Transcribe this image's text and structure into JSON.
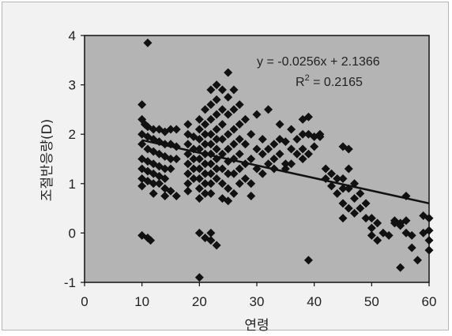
{
  "chart_data": {
    "type": "scatter",
    "title": "",
    "xlabel": "연령",
    "ylabel": "조절반응량(D)",
    "xlim": [
      0,
      60
    ],
    "ylim": [
      -1,
      4
    ],
    "x_ticks": [
      "0",
      "10",
      "20",
      "30",
      "40",
      "50",
      "60"
    ],
    "y_ticks": [
      "-1",
      "0",
      "1",
      "2",
      "3",
      "4"
    ],
    "grid": false,
    "background_color": "#b4b4b4",
    "marker_color": "#111111",
    "marker": "diamond",
    "trendline": {
      "slope": -0.0256,
      "intercept": 2.1366,
      "x_range": [
        10,
        60
      ]
    },
    "annotations": {
      "equation": "y = -0.0256x + 2.1366",
      "r2_label": "R",
      "r2_sup": "2",
      "r2_value": " = 0.2165"
    },
    "points": [
      [
        11,
        3.85
      ],
      [
        10,
        2.6
      ],
      [
        10,
        2.3
      ],
      [
        10.5,
        2.2
      ],
      [
        11,
        2.15
      ],
      [
        12,
        2.1
      ],
      [
        13,
        2.1
      ],
      [
        14,
        2.05
      ],
      [
        15,
        2.1
      ],
      [
        16,
        2.1
      ],
      [
        10,
        2.0
      ],
      [
        11,
        1.95
      ],
      [
        12,
        1.9
      ],
      [
        13,
        1.85
      ],
      [
        14,
        1.8
      ],
      [
        15,
        1.8
      ],
      [
        16,
        1.75
      ],
      [
        10,
        1.8
      ],
      [
        11,
        1.7
      ],
      [
        12,
        1.65
      ],
      [
        13,
        1.6
      ],
      [
        14,
        1.55
      ],
      [
        15,
        1.5
      ],
      [
        16,
        1.5
      ],
      [
        10,
        1.5
      ],
      [
        11,
        1.45
      ],
      [
        12,
        1.4
      ],
      [
        13,
        1.35
      ],
      [
        14,
        1.3
      ],
      [
        15,
        1.3
      ],
      [
        10,
        1.3
      ],
      [
        11,
        1.25
      ],
      [
        12,
        1.2
      ],
      [
        13,
        1.15
      ],
      [
        14,
        1.1
      ],
      [
        10,
        1.1
      ],
      [
        11,
        1.05
      ],
      [
        12,
        1.0
      ],
      [
        13,
        1.0
      ],
      [
        10,
        0.95
      ],
      [
        14,
        0.9
      ],
      [
        15,
        0.85
      ],
      [
        12,
        0.8
      ],
      [
        14,
        0.75
      ],
      [
        16,
        0.75
      ],
      [
        10,
        -0.05
      ],
      [
        11,
        -0.1
      ],
      [
        11.5,
        -0.15
      ],
      [
        18,
        2.2
      ],
      [
        18,
        2.0
      ],
      [
        18,
        1.8
      ],
      [
        18,
        1.6
      ],
      [
        18,
        1.4
      ],
      [
        18,
        1.2
      ],
      [
        18,
        1.0
      ],
      [
        18,
        0.85
      ],
      [
        19,
        1.95
      ],
      [
        19,
        1.7
      ],
      [
        19,
        1.5
      ],
      [
        19,
        1.3
      ],
      [
        19,
        1.1
      ],
      [
        20,
        2.3
      ],
      [
        20,
        2.1
      ],
      [
        20,
        1.9
      ],
      [
        20,
        1.7
      ],
      [
        20,
        1.5
      ],
      [
        20,
        1.3
      ],
      [
        20,
        1.1
      ],
      [
        20,
        0.9
      ],
      [
        20,
        0.7
      ],
      [
        20,
        0.0
      ],
      [
        20,
        -0.9
      ],
      [
        21,
        2.5
      ],
      [
        21,
        2.2
      ],
      [
        21,
        2.0
      ],
      [
        21,
        1.8
      ],
      [
        21,
        1.6
      ],
      [
        21,
        1.4
      ],
      [
        21,
        1.2
      ],
      [
        21,
        1.0
      ],
      [
        21,
        0.8
      ],
      [
        21,
        -0.1
      ],
      [
        22,
        2.9
      ],
      [
        22,
        2.6
      ],
      [
        22,
        2.3
      ],
      [
        22,
        2.0
      ],
      [
        22,
        1.8
      ],
      [
        22,
        1.6
      ],
      [
        22,
        1.4
      ],
      [
        22,
        1.2
      ],
      [
        22,
        1.0
      ],
      [
        22,
        0.8
      ],
      [
        22,
        0.0
      ],
      [
        22,
        -0.15
      ],
      [
        23,
        3.0
      ],
      [
        23,
        2.7
      ],
      [
        23,
        2.4
      ],
      [
        23,
        2.1
      ],
      [
        23,
        1.9
      ],
      [
        23,
        1.7
      ],
      [
        23,
        1.5
      ],
      [
        23,
        1.3
      ],
      [
        23,
        1.1
      ],
      [
        23,
        -0.25
      ],
      [
        24,
        2.9
      ],
      [
        24,
        2.5
      ],
      [
        24,
        2.2
      ],
      [
        24,
        1.9
      ],
      [
        24,
        1.6
      ],
      [
        24,
        1.3
      ],
      [
        24,
        1.0
      ],
      [
        24,
        0.7
      ],
      [
        25,
        3.25
      ],
      [
        25,
        2.75
      ],
      [
        25,
        2.4
      ],
      [
        25,
        2.0
      ],
      [
        25,
        1.7
      ],
      [
        25,
        1.45
      ],
      [
        25,
        1.2
      ],
      [
        25,
        0.9
      ],
      [
        25,
        0.65
      ],
      [
        26,
        2.9
      ],
      [
        26,
        2.5
      ],
      [
        26,
        2.1
      ],
      [
        26,
        1.8
      ],
      [
        26,
        1.5
      ],
      [
        26,
        1.2
      ],
      [
        26,
        0.8
      ],
      [
        27,
        2.6
      ],
      [
        27,
        2.2
      ],
      [
        27,
        1.9
      ],
      [
        27,
        1.6
      ],
      [
        27,
        1.3
      ],
      [
        27,
        1.0
      ],
      [
        28,
        2.3
      ],
      [
        28,
        1.8
      ],
      [
        28,
        1.4
      ],
      [
        28,
        1.1
      ],
      [
        29,
        2.0
      ],
      [
        29,
        1.5
      ],
      [
        29,
        1.0
      ],
      [
        29,
        0.75
      ],
      [
        30,
        2.4
      ],
      [
        30,
        1.7
      ],
      [
        30,
        1.3
      ],
      [
        31,
        1.9
      ],
      [
        31,
        1.6
      ],
      [
        31,
        1.2
      ],
      [
        32,
        2.5
      ],
      [
        32,
        1.7
      ],
      [
        32,
        1.4
      ],
      [
        33,
        1.8
      ],
      [
        33,
        1.5
      ],
      [
        33,
        1.3
      ],
      [
        34,
        2.2
      ],
      [
        34,
        1.9
      ],
      [
        34,
        1.6
      ],
      [
        35,
        1.85
      ],
      [
        35,
        1.4
      ],
      [
        35,
        1.3
      ],
      [
        36,
        2.1
      ],
      [
        36,
        1.7
      ],
      [
        36,
        1.4
      ],
      [
        37,
        1.9
      ],
      [
        37,
        1.6
      ],
      [
        38,
        2.3
      ],
      [
        38,
        2.0
      ],
      [
        38,
        1.7
      ],
      [
        38,
        1.5
      ],
      [
        39,
        2.35
      ],
      [
        39,
        2.0
      ],
      [
        39,
        1.6
      ],
      [
        39,
        -0.55
      ],
      [
        40,
        1.95
      ],
      [
        40,
        1.75
      ],
      [
        41,
        2.0
      ],
      [
        41,
        1.95
      ],
      [
        42,
        1.3
      ],
      [
        42,
        1.1
      ],
      [
        43,
        1.2
      ],
      [
        43,
        0.95
      ],
      [
        44,
        1.1
      ],
      [
        44,
        0.8
      ],
      [
        45,
        1.75
      ],
      [
        45,
        1.1
      ],
      [
        45,
        0.9
      ],
      [
        45,
        0.6
      ],
      [
        45,
        0.3
      ],
      [
        46,
        1.7
      ],
      [
        46,
        1.3
      ],
      [
        46,
        0.9
      ],
      [
        46,
        0.5
      ],
      [
        47,
        1.0
      ],
      [
        47,
        0.7
      ],
      [
        47,
        0.4
      ],
      [
        48,
        0.8
      ],
      [
        48,
        0.5
      ],
      [
        49,
        0.6
      ],
      [
        49,
        0.3
      ],
      [
        50,
        0.3
      ],
      [
        50,
        0.1
      ],
      [
        50,
        -0.05
      ],
      [
        51,
        0.2
      ],
      [
        51,
        -0.15
      ],
      [
        52,
        0.0
      ],
      [
        53,
        -0.05
      ],
      [
        54,
        0.25
      ],
      [
        54,
        0.2
      ],
      [
        55,
        0.2
      ],
      [
        55,
        0.15
      ],
      [
        55,
        -0.7
      ],
      [
        56,
        0.25
      ],
      [
        56,
        0.75
      ],
      [
        56,
        0.0
      ],
      [
        57,
        -0.05
      ],
      [
        57,
        -0.3
      ],
      [
        58,
        -0.55
      ],
      [
        59,
        0.35
      ],
      [
        59,
        0.0
      ],
      [
        60,
        0.3
      ],
      [
        60,
        0.05
      ],
      [
        60,
        -0.15
      ],
      [
        60,
        -0.35
      ]
    ]
  }
}
